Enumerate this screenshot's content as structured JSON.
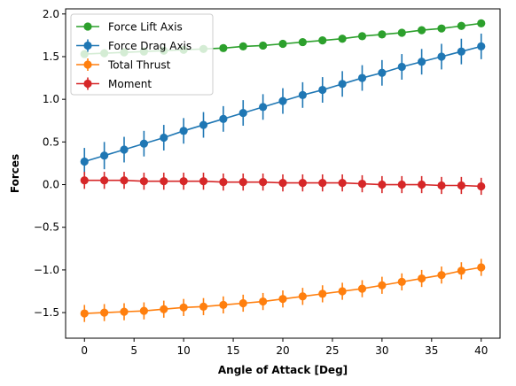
{
  "chart_data": {
    "type": "line",
    "title": "",
    "xlabel": "Angle of Attack [Deg]",
    "ylabel": "Forces",
    "xlim": [
      -1.9,
      41.9
    ],
    "ylim": [
      -1.8,
      2.06
    ],
    "xticks": [
      0,
      5,
      10,
      15,
      20,
      25,
      30,
      35,
      40
    ],
    "xtick_labels": [
      "0",
      "5",
      "10",
      "15",
      "20",
      "25",
      "30",
      "35",
      "40"
    ],
    "yticks": [
      -1.5,
      -1.0,
      -0.5,
      0.0,
      0.5,
      1.0,
      1.5,
      2.0
    ],
    "ytick_labels": [
      "−1.5",
      "−1.0",
      "−0.5",
      "0.0",
      "0.5",
      "1.0",
      "1.5",
      "2.0"
    ],
    "grid": false,
    "legend_position": "top-left",
    "x": [
      0,
      2,
      4,
      6,
      8,
      10,
      12,
      14,
      16,
      18,
      20,
      22,
      24,
      26,
      28,
      30,
      32,
      34,
      36,
      38,
      40
    ],
    "series": [
      {
        "name": "Force Lift Axis",
        "color": "#2ca02c",
        "values": [
          1.53,
          1.54,
          1.55,
          1.56,
          1.57,
          1.58,
          1.59,
          1.6,
          1.62,
          1.63,
          1.65,
          1.67,
          1.69,
          1.71,
          1.74,
          1.76,
          1.78,
          1.81,
          1.83,
          1.86,
          1.89
        ],
        "errors": null
      },
      {
        "name": "Force Drag Axis",
        "color": "#1f77b4",
        "values": [
          0.27,
          0.34,
          0.41,
          0.48,
          0.55,
          0.63,
          0.7,
          0.77,
          0.84,
          0.91,
          0.98,
          1.05,
          1.11,
          1.18,
          1.25,
          1.31,
          1.38,
          1.44,
          1.5,
          1.56,
          1.62
        ],
        "errors": [
          0.16,
          0.16,
          0.15,
          0.15,
          0.15,
          0.15,
          0.15,
          0.15,
          0.15,
          0.15,
          0.15,
          0.15,
          0.15,
          0.15,
          0.15,
          0.15,
          0.15,
          0.15,
          0.15,
          0.15,
          0.15
        ]
      },
      {
        "name": "Total Thrust",
        "color": "#ff7f0e",
        "values": [
          -1.51,
          -1.5,
          -1.49,
          -1.48,
          -1.46,
          -1.44,
          -1.43,
          -1.41,
          -1.39,
          -1.37,
          -1.34,
          -1.31,
          -1.28,
          -1.25,
          -1.22,
          -1.18,
          -1.14,
          -1.1,
          -1.06,
          -1.01,
          -0.97
        ],
        "errors": [
          0.1,
          0.1,
          0.1,
          0.1,
          0.1,
          0.1,
          0.1,
          0.1,
          0.1,
          0.1,
          0.1,
          0.1,
          0.1,
          0.1,
          0.1,
          0.1,
          0.1,
          0.1,
          0.1,
          0.1,
          0.1
        ]
      },
      {
        "name": "Moment",
        "color": "#d62728",
        "values": [
          0.05,
          0.05,
          0.05,
          0.04,
          0.04,
          0.04,
          0.04,
          0.03,
          0.03,
          0.03,
          0.02,
          0.02,
          0.02,
          0.02,
          0.01,
          0.0,
          0.0,
          0.0,
          -0.01,
          -0.01,
          -0.02
        ],
        "errors": [
          0.1,
          0.1,
          0.1,
          0.1,
          0.1,
          0.1,
          0.1,
          0.1,
          0.1,
          0.1,
          0.1,
          0.1,
          0.1,
          0.1,
          0.1,
          0.1,
          0.1,
          0.1,
          0.1,
          0.1,
          0.1
        ]
      }
    ]
  }
}
